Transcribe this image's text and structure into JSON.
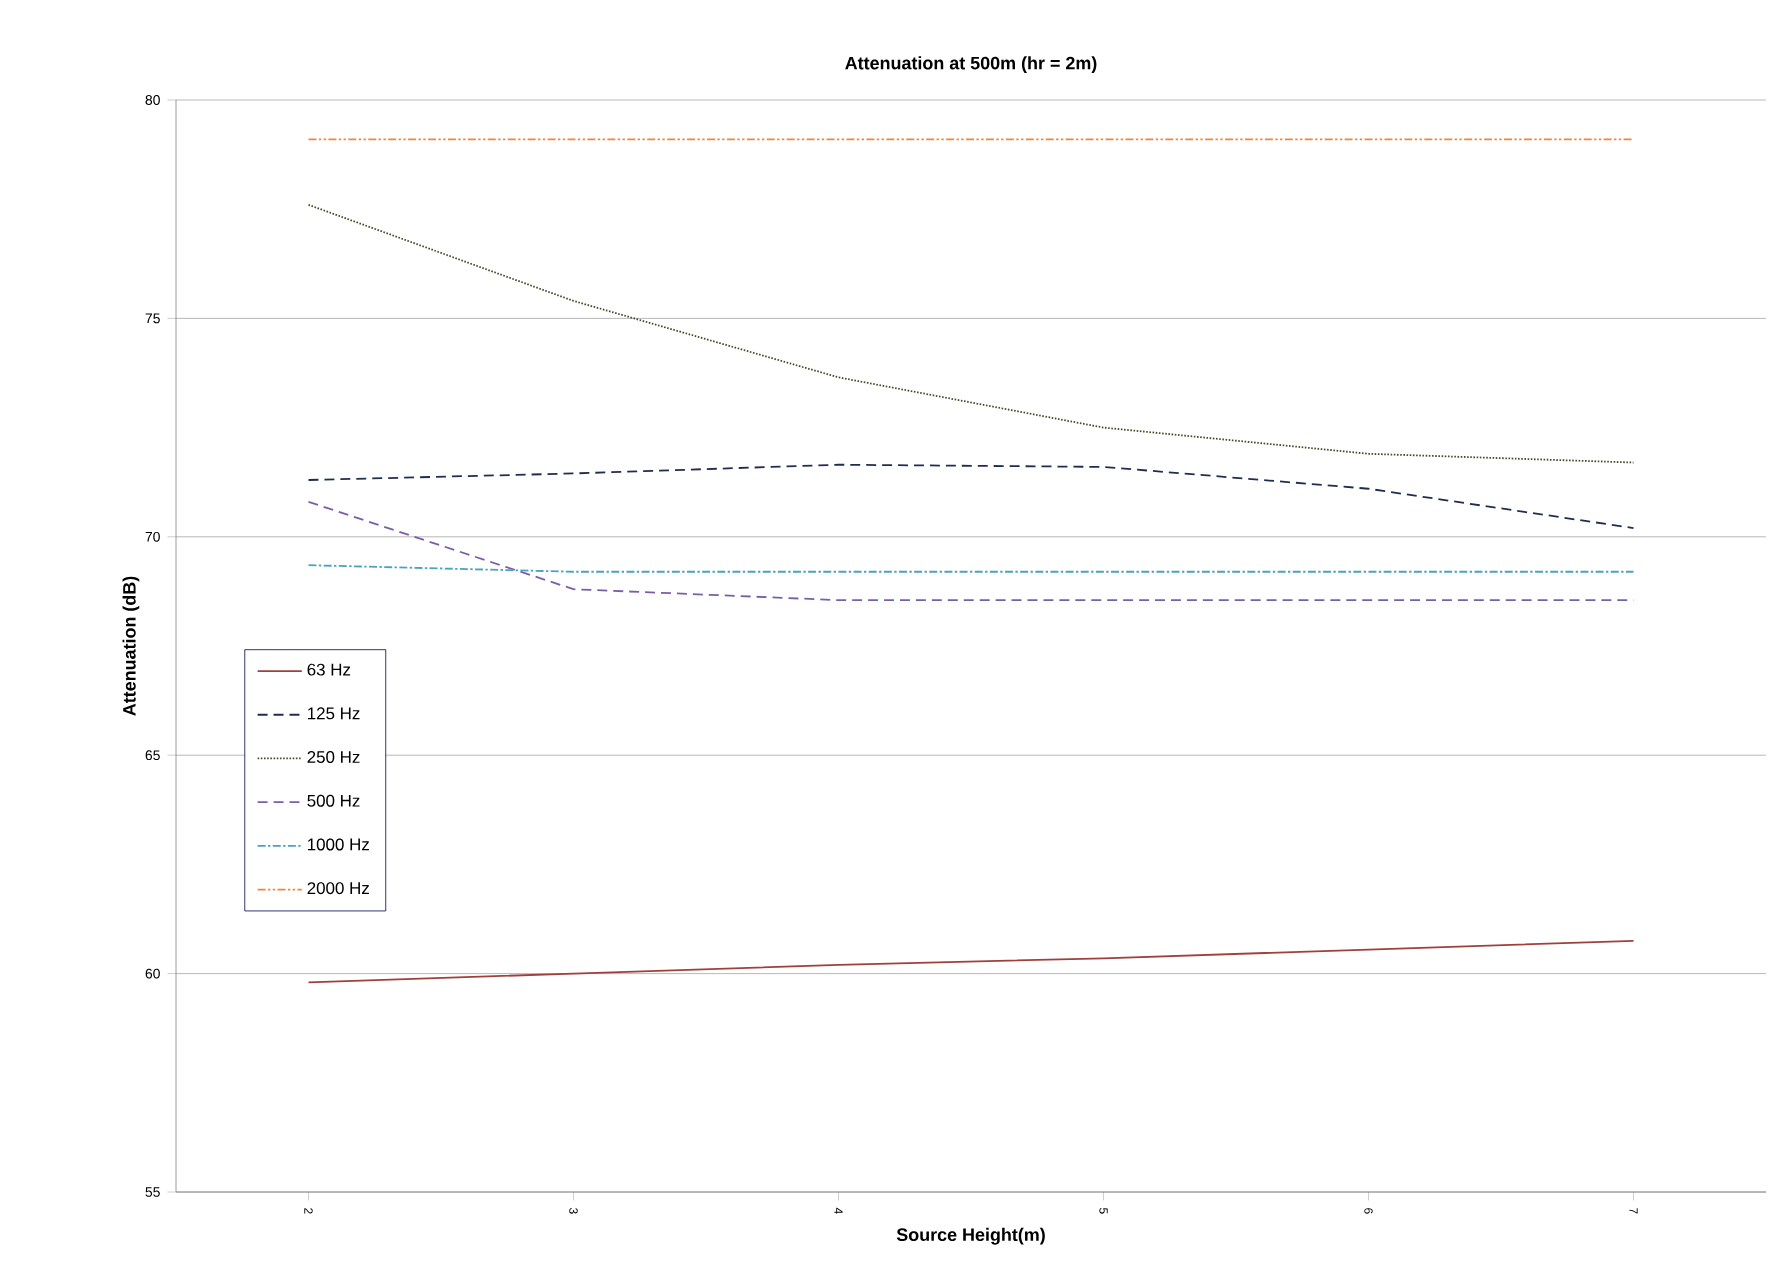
{
  "chart_data": {
    "type": "line",
    "title": "Attenuation at 500m (hr = 2m)",
    "xlabel": "Source Height(m)",
    "ylabel": "Attenuation (dB)",
    "categories": [
      "2",
      "3",
      "4",
      "5",
      "6",
      "7"
    ],
    "series": [
      {
        "name": "63 Hz",
        "color": "#a0403c",
        "line_style": "solid",
        "values": [
          59.8,
          60.0,
          60.2,
          60.35,
          60.55,
          60.75
        ]
      },
      {
        "name": "125 Hz",
        "color": "#1f2d4e",
        "line_style": "dashed",
        "values": [
          71.3,
          71.45,
          71.65,
          71.6,
          71.1,
          70.2
        ]
      },
      {
        "name": "250 Hz",
        "color": "#4a4a2a",
        "line_style": "dotted",
        "values": [
          77.6,
          75.4,
          73.65,
          72.5,
          71.9,
          71.7
        ]
      },
      {
        "name": "500 Hz",
        "color": "#7b5ea7",
        "line_style": "dashed",
        "values": [
          70.8,
          68.8,
          68.55,
          68.55,
          68.55,
          68.55
        ]
      },
      {
        "name": "1000 Hz",
        "color": "#4aa3bf",
        "line_style": "dashdot",
        "values": [
          69.35,
          69.2,
          69.2,
          69.2,
          69.2,
          69.2
        ]
      },
      {
        "name": "2000 Hz",
        "color": "#f0883a",
        "line_style": "dashdotdot",
        "values": [
          79.1,
          79.1,
          79.1,
          79.1,
          79.1,
          79.1
        ]
      }
    ],
    "ylim": [
      55,
      80
    ],
    "yticks": [
      55,
      60,
      65,
      70,
      75,
      80
    ],
    "grid": "y",
    "legend": "left",
    "marker": "none"
  }
}
